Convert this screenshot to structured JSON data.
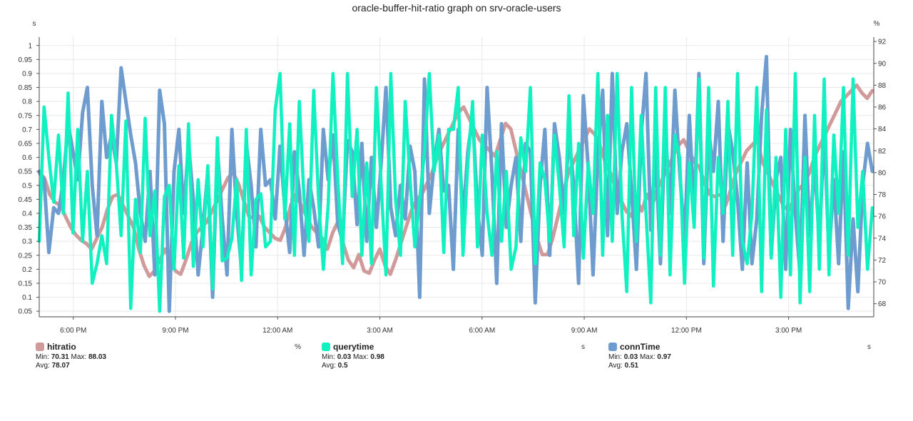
{
  "title": "oracle-buffer-hit-ratio graph on srv-oracle-users",
  "left_axis_unit": "s",
  "right_axis_unit": "%",
  "chart_data": {
    "type": "line",
    "title": "oracle-buffer-hit-ratio graph on srv-oracle-users",
    "x_range_hours": [
      17.0,
      41.5
    ],
    "x_ticks": [
      {
        "label": "6:00 PM",
        "hour": 18
      },
      {
        "label": "9:00 PM",
        "hour": 21
      },
      {
        "label": "12:00 AM",
        "hour": 24
      },
      {
        "label": "3:00 AM",
        "hour": 27
      },
      {
        "label": "6:00 AM",
        "hour": 30
      },
      {
        "label": "9:00 AM",
        "hour": 33
      },
      {
        "label": "12:00 PM",
        "hour": 36
      },
      {
        "label": "3:00 PM",
        "hour": 39
      }
    ],
    "left_axis": {
      "unit": "s",
      "min": 0.03,
      "max": 1.03,
      "ticks": [
        "1",
        "0.95",
        "0.9",
        "0.85",
        "0.8",
        "0.75",
        "0.7",
        "0.65",
        "0.6",
        "0.55",
        "0.5",
        "0.45",
        "0.4",
        "0.35",
        "0.3",
        "0.25",
        "0.2",
        "0.15",
        "0.1",
        "0.05"
      ]
    },
    "right_axis": {
      "unit": "%",
      "min": 66.8,
      "max": 92.4,
      "ticks": [
        "92",
        "90",
        "88",
        "86",
        "84",
        "82",
        "80",
        "78",
        "76",
        "74",
        "72",
        "70",
        "68"
      ]
    },
    "grid": true,
    "legend_position": "bottom",
    "series": [
      {
        "name": "hitratio",
        "unit": "%",
        "axis": "right",
        "color": "#d09a9a",
        "min": "70.31",
        "max": "88.03",
        "avg": "78.07",
        "values": [
          80.0,
          79.5,
          78.0,
          77.3,
          77.0,
          76.0,
          75.0,
          74.3,
          73.8,
          73.5,
          73.0,
          74.0,
          75.0,
          76.6,
          77.8,
          78.0,
          77.0,
          76.0,
          75.0,
          73.0,
          71.5,
          70.5,
          71.0,
          72.0,
          73.0,
          72.0,
          71.0,
          70.7,
          72.0,
          73.5,
          74.5,
          75.0,
          75.5,
          76.5,
          77.5,
          78.5,
          79.5,
          80.0,
          79.0,
          77.5,
          76.0,
          75.8,
          76.0,
          75.0,
          74.5,
          74.0,
          73.8,
          75.0,
          77.0,
          78.0,
          77.0,
          76.0,
          75.0,
          74.5,
          74.0,
          73.0,
          74.5,
          75.5,
          73.5,
          72.0,
          71.3,
          72.5,
          71.0,
          70.8,
          72.0,
          73.0,
          71.5,
          70.7,
          72.0,
          73.5,
          75.0,
          76.5,
          77.5,
          78.0,
          79.0,
          80.0,
          81.5,
          82.5,
          83.5,
          84.5,
          85.5,
          86.0,
          85.0,
          84.0,
          83.0,
          82.5,
          82.0,
          81.5,
          83.0,
          84.5,
          84.0,
          82.0,
          80.0,
          78.0,
          76.0,
          74.0,
          72.5,
          72.5,
          74.0,
          76.0,
          78.0,
          80.0,
          81.0,
          82.0,
          83.0,
          84.0,
          83.5,
          82.5,
          81.0,
          80.0,
          78.5,
          77.5,
          76.5,
          76.0,
          77.5,
          76.5,
          78.0,
          77.0,
          78.5,
          79.5,
          80.5,
          81.5,
          82.5,
          83.0,
          82.0,
          81.0,
          80.5,
          79.0,
          78.0,
          77.8,
          78.0,
          77.0,
          78.5,
          80.0,
          81.0,
          82.0,
          82.5,
          83.0,
          81.0,
          80.0,
          79.0,
          78.0,
          77.0,
          76.5,
          77.5,
          78.5,
          79.0,
          80.0,
          81.5,
          82.5,
          83.5,
          84.5,
          85.5,
          86.5,
          87.0,
          87.5,
          88.0,
          87.3,
          86.8,
          87.5
        ]
      },
      {
        "name": "querytime",
        "unit": "s",
        "axis": "left",
        "color": "#10f0c0",
        "min": "0.03",
        "max": "0.98",
        "avg": "0.5",
        "values": [
          0.3,
          0.78,
          0.6,
          0.44,
          0.68,
          0.4,
          0.83,
          0.33,
          0.7,
          0.3,
          0.55,
          0.15,
          0.22,
          0.32,
          0.22,
          0.75,
          0.58,
          0.32,
          0.73,
          0.06,
          0.45,
          0.26,
          0.74,
          0.32,
          0.48,
          0.05,
          0.46,
          0.5,
          0.2,
          0.57,
          0.24,
          0.72,
          0.21,
          0.52,
          0.28,
          0.57,
          0.13,
          0.67,
          0.23,
          0.24,
          0.31,
          0.52,
          0.16,
          0.7,
          0.18,
          0.45,
          0.47,
          0.28,
          0.3,
          0.77,
          0.9,
          0.38,
          0.72,
          0.25,
          0.8,
          0.45,
          0.3,
          0.84,
          0.45,
          0.2,
          0.43,
          0.9,
          0.52,
          0.22,
          0.9,
          0.46,
          0.7,
          0.25,
          0.58,
          0.22,
          0.85,
          0.5,
          0.18,
          0.9,
          0.45,
          0.25,
          0.8,
          0.52,
          0.28,
          0.45,
          0.62,
          0.9,
          0.55,
          0.68,
          0.26,
          0.7,
          0.7,
          0.85,
          0.25,
          0.58,
          0.8,
          0.28,
          0.68,
          0.4,
          0.25,
          0.62,
          0.3,
          0.55,
          0.2,
          0.28,
          0.67,
          0.55,
          0.85,
          0.22,
          0.58,
          0.52,
          0.3,
          0.68,
          0.5,
          0.28,
          0.82,
          0.32,
          0.65,
          0.24,
          0.58,
          0.4,
          0.9,
          0.25,
          0.75,
          0.3,
          0.9,
          0.4,
          0.12,
          0.85,
          0.3,
          0.75,
          0.4,
          0.08,
          0.85,
          0.25,
          0.85,
          0.18,
          0.68,
          0.6,
          0.15,
          0.58,
          0.35,
          0.88,
          0.24,
          0.85,
          0.14,
          0.6,
          0.4,
          0.8,
          0.25,
          0.9,
          0.3,
          0.22,
          0.4,
          0.85,
          0.12,
          0.77,
          0.24,
          0.6,
          0.1,
          0.7,
          0.18,
          0.9,
          0.08,
          0.6,
          0.12,
          0.75,
          0.2,
          0.88,
          0.18,
          0.68,
          0.4,
          0.85,
          0.25,
          0.88,
          0.35,
          0.55,
          0.2,
          0.42
        ]
      },
      {
        "name": "connTime",
        "unit": "s",
        "axis": "left",
        "color": "#6f9ccf",
        "min": "0.03",
        "max": "0.97",
        "avg": "0.51",
        "values": [
          0.55,
          0.52,
          0.26,
          0.42,
          0.4,
          0.52,
          0.72,
          0.62,
          0.52,
          0.76,
          0.85,
          0.5,
          0.32,
          0.8,
          0.6,
          0.68,
          0.58,
          0.92,
          0.8,
          0.68,
          0.58,
          0.4,
          0.3,
          0.55,
          0.18,
          0.84,
          0.72,
          0.05,
          0.55,
          0.7,
          0.4,
          0.65,
          0.45,
          0.18,
          0.35,
          0.55,
          0.1,
          0.63,
          0.38,
          0.18,
          0.7,
          0.4,
          0.2,
          0.65,
          0.5,
          0.28,
          0.7,
          0.5,
          0.52,
          0.38,
          0.64,
          0.42,
          0.26,
          0.62,
          0.48,
          0.25,
          0.52,
          0.42,
          0.28,
          0.7,
          0.52,
          0.68,
          0.36,
          0.3,
          0.66,
          0.62,
          0.36,
          0.65,
          0.3,
          0.6,
          0.35,
          0.58,
          0.85,
          0.42,
          0.32,
          0.5,
          0.38,
          0.64,
          0.55,
          0.1,
          0.88,
          0.4,
          0.58,
          0.7,
          0.48,
          0.5,
          0.2,
          0.7,
          0.38,
          0.62,
          0.75,
          0.42,
          0.25,
          0.85,
          0.55,
          0.15,
          0.72,
          0.35,
          0.5,
          0.6,
          0.3,
          0.65,
          0.62,
          0.08,
          0.5,
          0.7,
          0.25,
          0.72,
          0.6,
          0.4,
          0.68,
          0.5,
          0.15,
          0.82,
          0.56,
          0.18,
          0.6,
          0.84,
          0.32,
          0.9,
          0.4,
          0.62,
          0.72,
          0.48,
          0.2,
          0.68,
          0.9,
          0.34,
          0.62,
          0.22,
          0.72,
          0.4,
          0.84,
          0.55,
          0.3,
          0.75,
          0.4,
          0.9,
          0.22,
          0.7,
          0.55,
          0.8,
          0.3,
          0.72,
          0.62,
          0.45,
          0.2,
          0.58,
          0.22,
          0.38,
          0.75,
          0.96,
          0.25,
          0.52,
          0.6,
          0.2,
          0.7,
          0.4,
          0.18,
          0.75,
          0.32,
          0.58,
          0.3,
          0.7,
          0.25,
          0.52,
          0.22,
          0.62,
          0.06,
          0.38,
          0.12,
          0.5,
          0.65,
          0.55
        ]
      }
    ]
  }
}
